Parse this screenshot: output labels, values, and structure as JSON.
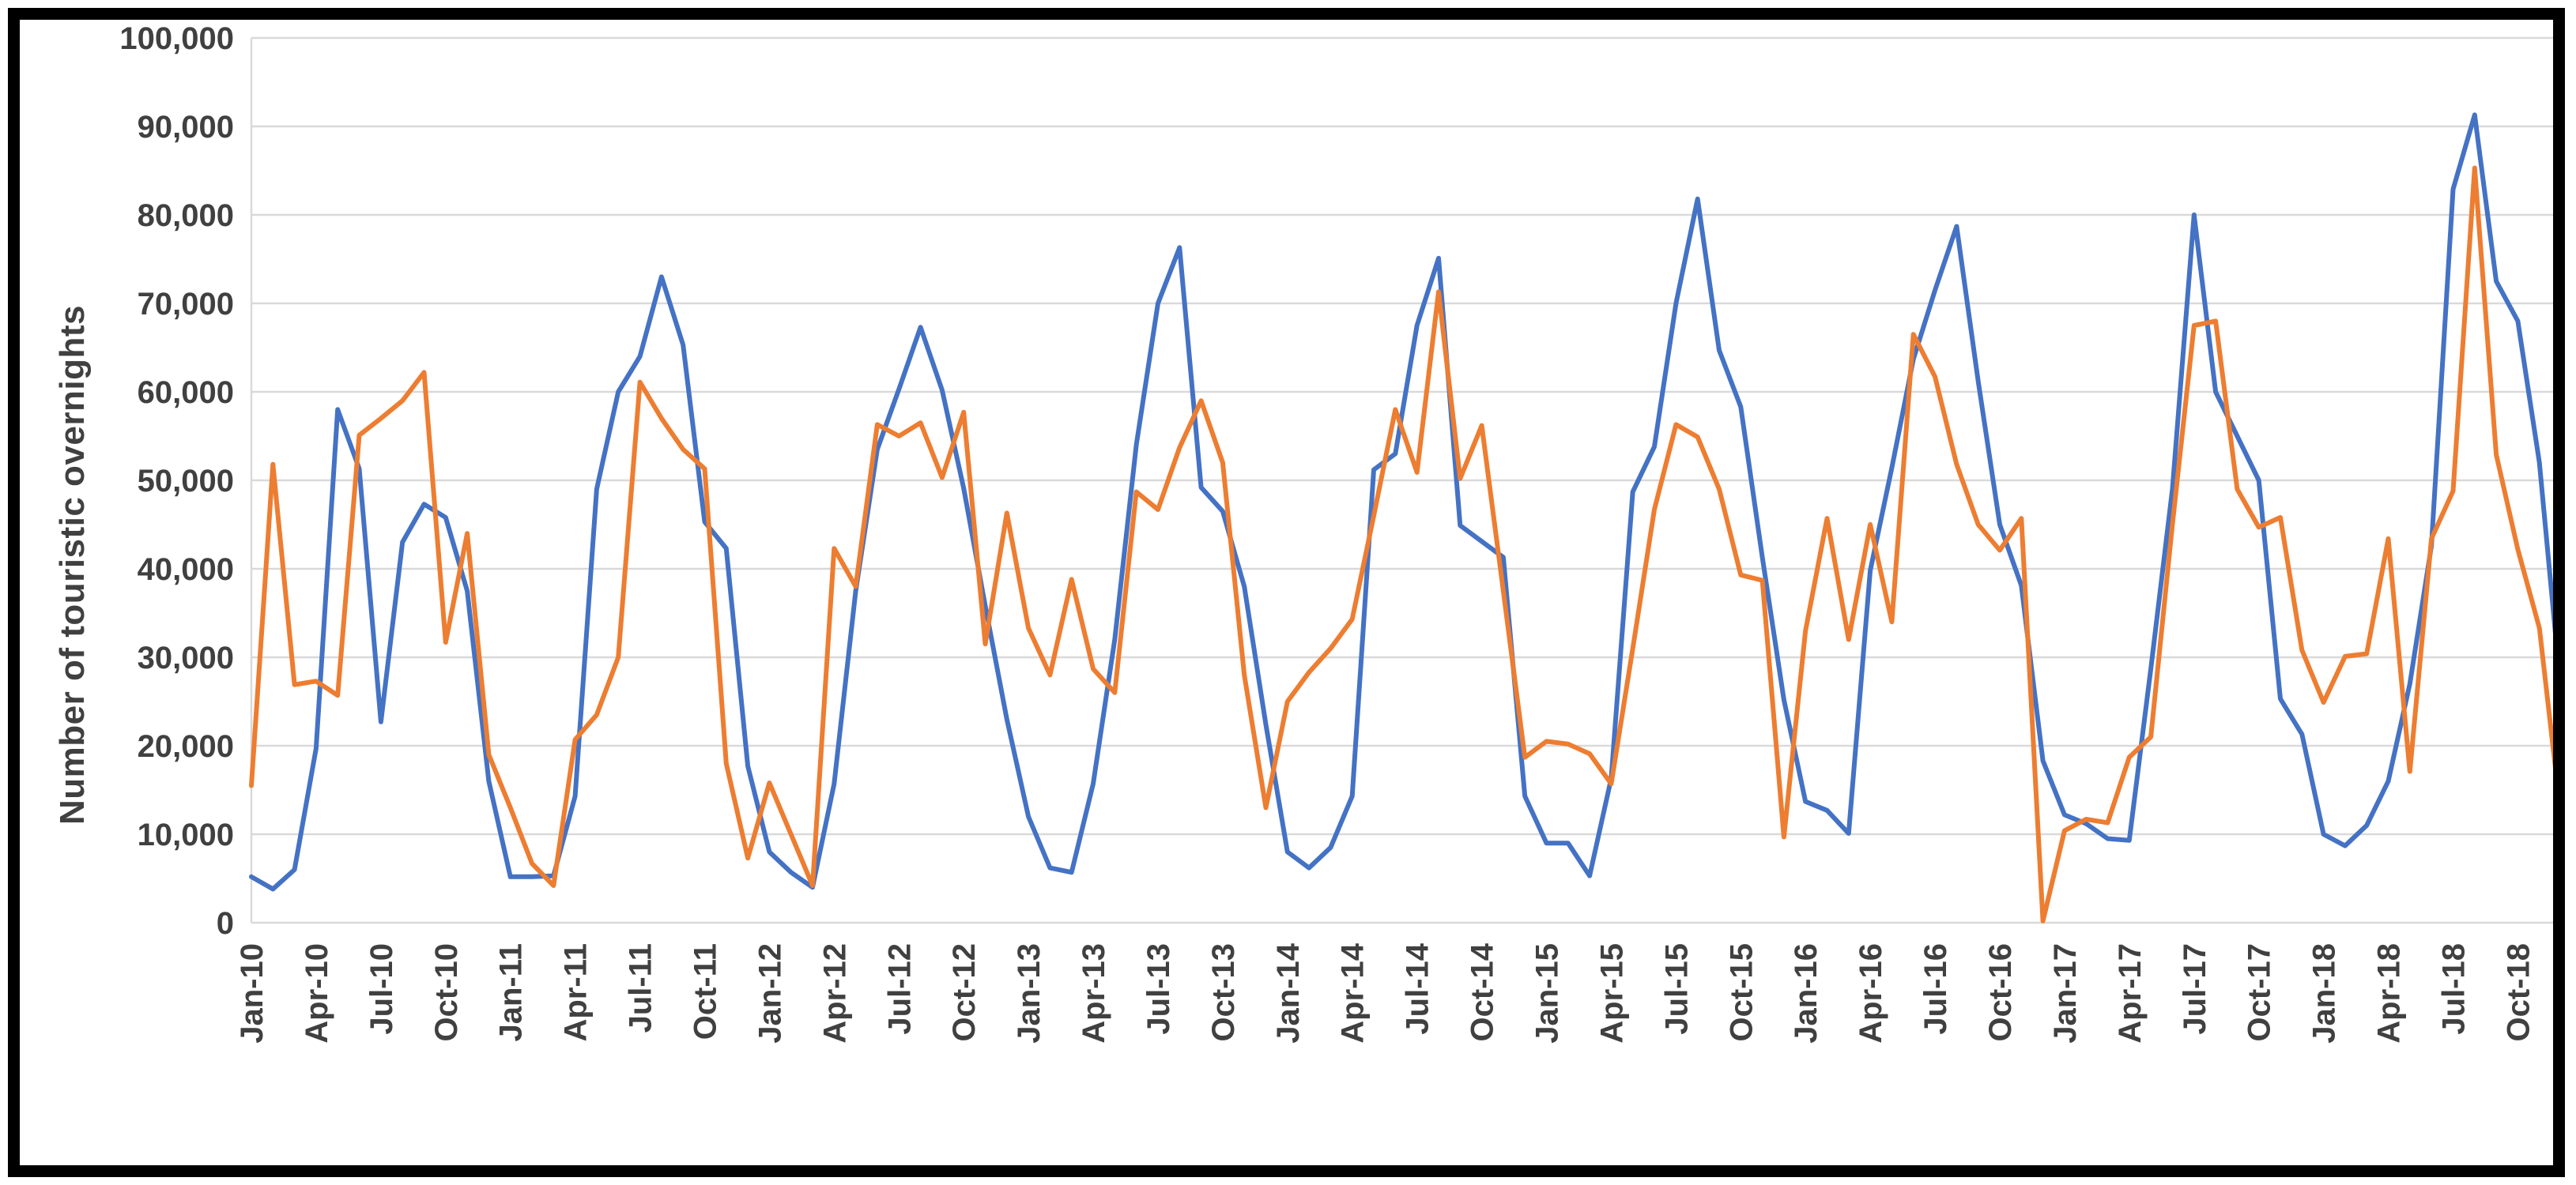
{
  "chart_data": {
    "type": "line",
    "title": "",
    "xlabel": "",
    "ylabel": "Number of touristic overnights",
    "ylim": [
      0,
      100000
    ],
    "y_step": 10000,
    "grid": true,
    "legend": "none",
    "n_points": 108,
    "x_tick_every": 3,
    "x_tick_labels": [
      "Jan-10",
      "Apr-10",
      "Jul-10",
      "Oct-10",
      "Jan-11",
      "Apr-11",
      "Jul-11",
      "Oct-11",
      "Jan-12",
      "Apr-12",
      "Jul-12",
      "Oct-12",
      "Jan-13",
      "Apr-13",
      "Jul-13",
      "Oct-13",
      "Jan-14",
      "Apr-14",
      "Jul-14",
      "Oct-14",
      "Jan-15",
      "Apr-15",
      "Jul-15",
      "Oct-15",
      "Jan-16",
      "Apr-16",
      "Jul-16",
      "Oct-16",
      "Jan-17",
      "Apr-17",
      "Jul-17",
      "Oct-17",
      "Jan-18",
      "Apr-18",
      "Jul-18",
      "Oct-18"
    ],
    "y_tick_labels": [
      "0",
      "10,000",
      "20,000",
      "30,000",
      "40,000",
      "50,000",
      "60,000",
      "70,000",
      "80,000",
      "90,000",
      "100,000"
    ],
    "series": [
      {
        "name": "series-blue",
        "color": "#4472C4",
        "values": [
          5200,
          3800,
          6000,
          19700,
          58000,
          51300,
          22700,
          43000,
          47300,
          45800,
          37500,
          16000,
          5200,
          5200,
          5300,
          14300,
          49000,
          60000,
          64000,
          73000,
          65300,
          45300,
          42300,
          17700,
          8000,
          5700,
          4000,
          15700,
          37500,
          53500,
          60300,
          67300,
          60200,
          49100,
          35800,
          23000,
          12000,
          6200,
          5700,
          15700,
          32000,
          54000,
          70000,
          76300,
          49200,
          46500,
          38000,
          22400,
          8000,
          6200,
          8500,
          14300,
          51200,
          53000,
          67500,
          75100,
          44900,
          43100,
          41300,
          14300,
          9000,
          9000,
          5300,
          16300,
          48700,
          53800,
          70000,
          81800,
          64700,
          58300,
          41300,
          25200,
          13700,
          12700,
          10100,
          39800,
          51400,
          63700,
          71500,
          78700,
          61200,
          45000,
          38100,
          18300,
          12200,
          11200,
          9500,
          9300,
          28700,
          49000,
          80000,
          60000,
          55000,
          50000,
          25300,
          21300,
          10000,
          8700,
          11000,
          16000,
          27000,
          42600,
          82900,
          91300,
          72500,
          68000,
          52000,
          26000
        ]
      },
      {
        "name": "series-orange",
        "color": "#ED7D31",
        "values": [
          15500,
          51800,
          26900,
          27300,
          25700,
          55100,
          57000,
          59000,
          62200,
          31700,
          44000,
          19000,
          13000,
          6700,
          4200,
          20700,
          23500,
          30000,
          61100,
          57000,
          53500,
          51300,
          18000,
          7300,
          15800,
          10000,
          4200,
          42300,
          38000,
          56300,
          55000,
          56500,
          50300,
          57700,
          31500,
          46300,
          33300,
          28000,
          38800,
          28700,
          26000,
          48700,
          46700,
          53700,
          59000,
          52000,
          28000,
          13000,
          25000,
          28300,
          31000,
          34300,
          46000,
          58000,
          50900,
          71300,
          50200,
          56200,
          37500,
          18700,
          20500,
          20200,
          19100,
          15700,
          31000,
          46700,
          56300,
          54900,
          49000,
          39300,
          38700,
          9700,
          33000,
          45700,
          32000,
          45000,
          34000,
          66500,
          61700,
          51800,
          45000,
          42100,
          45700,
          200,
          10400,
          11700,
          11300,
          18700,
          21000,
          45000,
          67500,
          68000,
          49000,
          44700,
          45800,
          30800,
          24900,
          30100,
          30400,
          43400,
          17100,
          43400,
          48800,
          85300,
          52900,
          42200,
          33300,
          12000
        ]
      }
    ],
    "style": {
      "grid_color": "#D9D9D9",
      "axis_color": "#BFBFBF",
      "label_color": "#404040",
      "background": "#FFFFFF",
      "frame_color": "#000000",
      "line_width": 6
    }
  }
}
